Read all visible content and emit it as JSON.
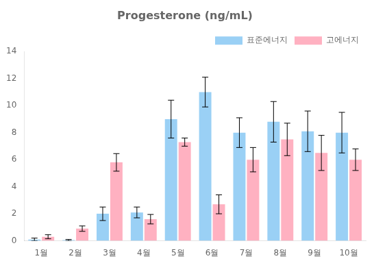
{
  "chart_data": {
    "type": "bar",
    "title": "Progesterone (ng/mL)",
    "categories": [
      "1월",
      "2월",
      "3월",
      "4월",
      "5월",
      "6월",
      "7월",
      "8월",
      "9월",
      "10월"
    ],
    "series": [
      {
        "name": "표준에너지",
        "values": [
          0.1,
          0.05,
          2.0,
          2.1,
          9.0,
          11.0,
          8.0,
          8.8,
          8.1,
          8.0
        ],
        "errors": [
          0.1,
          0.05,
          0.5,
          0.4,
          1.4,
          1.1,
          1.1,
          1.5,
          1.5,
          1.5
        ]
      },
      {
        "name": "고에너지",
        "values": [
          0.3,
          0.9,
          5.8,
          1.6,
          7.3,
          2.7,
          6.0,
          7.5,
          6.5,
          6.0
        ],
        "errors": [
          0.15,
          0.2,
          0.65,
          0.35,
          0.3,
          0.7,
          0.9,
          1.2,
          1.3,
          0.8
        ]
      }
    ],
    "ylim": [
      0,
      14
    ],
    "yticks": [
      0,
      2,
      4,
      6,
      8,
      10,
      12,
      14
    ],
    "grid": false,
    "legend": "upper right"
  }
}
